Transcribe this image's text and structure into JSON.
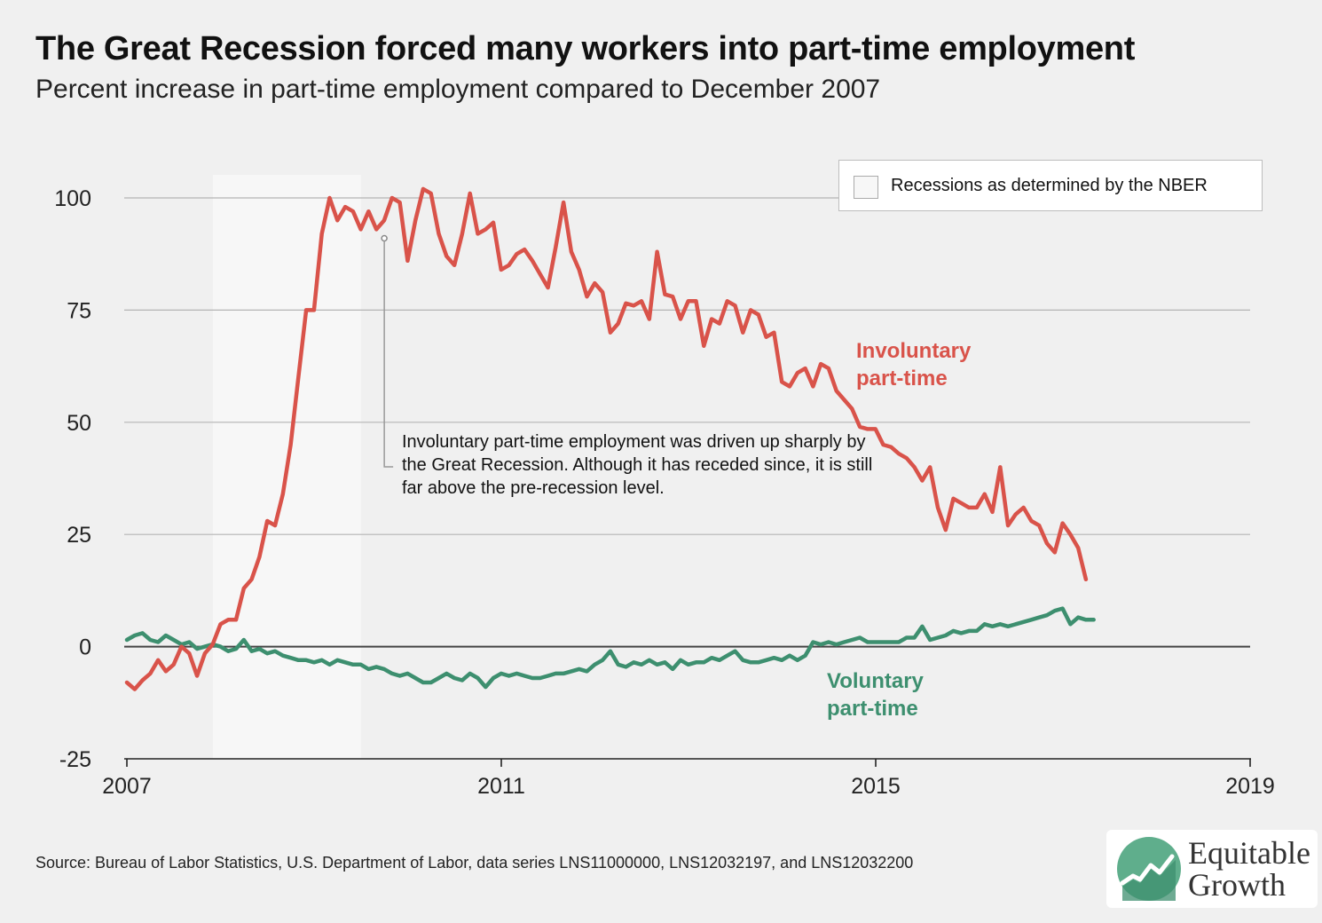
{
  "colors": {
    "background": "#f0f0f0",
    "involuntary": "#d9534a",
    "voluntary": "#3d8f6f",
    "recession_band": "#f7f7f7",
    "grid": "#b4b4b4",
    "zero_line": "#444444"
  },
  "title": "The Great Recession forced many workers into part-time employment",
  "subtitle": "Percent increase in part-time employment compared to December 2007",
  "source": "Source: Bureau of Labor Statistics, U.S. Department of Labor, data series LNS11000000, LNS12032197, and LNS12032200",
  "logo": {
    "line1": "Equitable",
    "line2": "Growth",
    "icon": "chart-line-icon"
  },
  "legend": {
    "label": "Recessions as determined by the NBER"
  },
  "annotation": {
    "text": "Involuntary part-time employment was driven up sharply by the Great Recession. Although it has receded since, it is still far above the pre-recession level.",
    "points_to": {
      "year": 2009.75,
      "value": 91
    }
  },
  "labels": {
    "involuntary_line1": "Involuntary",
    "involuntary_line2": "part-time",
    "voluntary_line1": "Voluntary",
    "voluntary_line2": "part-time"
  },
  "chart_data": {
    "type": "line",
    "title": "The Great Recession forced many workers into part-time employment",
    "subtitle": "Percent increase in part-time employment compared to December 2007",
    "xlabel": "",
    "ylabel": "",
    "xlim": [
      2007,
      2019
    ],
    "ylim": [
      -25,
      100
    ],
    "x_ticks": [
      2007,
      2011,
      2015,
      2019
    ],
    "y_ticks": [
      -25,
      0,
      25,
      50,
      75,
      100
    ],
    "grid": true,
    "legend_position": "top-right",
    "recession_band": {
      "start": 2007.92,
      "end": 2009.5
    },
    "series": [
      {
        "name": "Involuntary part-time",
        "x_start": 2007.0,
        "x_step": 0.0833,
        "values": [
          -8,
          -9.5,
          -7.5,
          -6,
          -3,
          -5.5,
          -4,
          0,
          -1.5,
          -6.5,
          -1.5,
          0.5,
          5,
          6,
          6,
          13,
          15,
          20,
          28,
          27,
          34,
          45,
          60,
          75,
          75,
          92,
          100,
          95,
          98,
          97,
          93,
          97,
          93,
          95,
          100,
          99,
          86,
          95,
          102,
          101,
          92,
          87,
          85,
          92,
          101,
          92,
          93,
          94.5,
          84,
          85,
          87.5,
          88.5,
          86,
          83,
          80,
          89,
          99,
          88,
          84,
          78,
          81,
          79,
          70,
          72,
          76.5,
          76,
          77,
          73,
          88,
          78.5,
          78,
          73,
          77,
          77,
          67,
          73,
          72,
          77,
          76,
          70,
          75,
          74,
          69,
          70,
          59,
          58,
          61,
          62,
          58,
          63,
          62,
          57,
          55,
          53,
          49,
          48.5,
          48.5,
          45,
          44.5,
          43,
          42,
          40,
          37,
          40,
          31,
          26,
          33,
          32,
          31,
          31,
          34,
          30,
          40,
          27,
          29.5,
          31,
          28,
          27,
          23,
          21,
          27.5,
          25,
          22,
          15
        ]
      },
      {
        "name": "Voluntary part-time",
        "x_start": 2007.0,
        "x_step": 0.0833,
        "values": [
          1.5,
          2.5,
          3,
          1.5,
          1,
          2.5,
          1.5,
          0.5,
          1,
          -0.5,
          0,
          0.5,
          0,
          -1,
          -0.5,
          1.5,
          -1,
          -0.5,
          -1.5,
          -1,
          -2,
          -2.5,
          -3,
          -3,
          -3.5,
          -3,
          -4,
          -3,
          -3.5,
          -4,
          -4,
          -5,
          -4.5,
          -5,
          -6,
          -6.5,
          -6,
          -7,
          -8,
          -8,
          -7,
          -6,
          -7,
          -7.5,
          -6,
          -7,
          -9,
          -7,
          -6,
          -6.5,
          -6,
          -6.5,
          -7,
          -7,
          -6.5,
          -6,
          -6,
          -5.5,
          -5,
          -5.5,
          -4,
          -3,
          -1,
          -4,
          -4.5,
          -3.5,
          -4,
          -3,
          -4,
          -3.5,
          -5,
          -3,
          -4,
          -3.5,
          -3.5,
          -2.5,
          -3,
          -2,
          -1,
          -3,
          -3.5,
          -3.5,
          -3,
          -2.5,
          -3,
          -2,
          -3,
          -2,
          1,
          0.5,
          1,
          0.5,
          1,
          1.5,
          2,
          1,
          1,
          1,
          1,
          1,
          2,
          2,
          4.5,
          1.5,
          2,
          2.5,
          3.5,
          3,
          3.5,
          3.5,
          5,
          4.5,
          5,
          4.5,
          5,
          5.5,
          6,
          6.5,
          7,
          8,
          8.5,
          5,
          6.5,
          6,
          6
        ]
      }
    ]
  }
}
